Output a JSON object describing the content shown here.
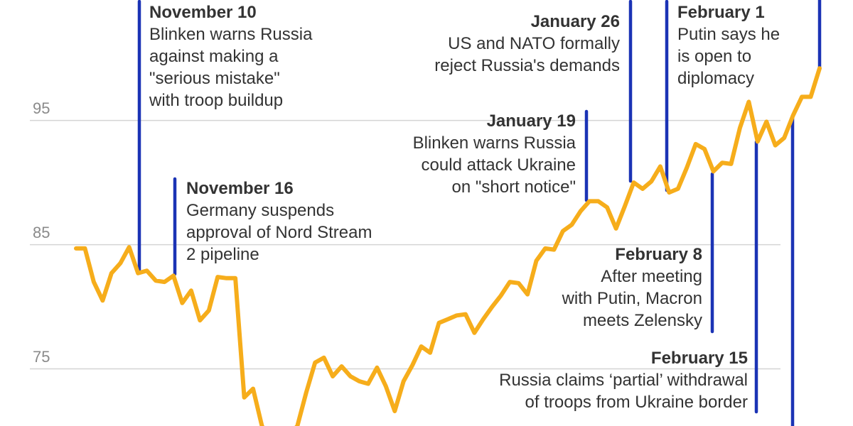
{
  "chart_data": {
    "type": "line",
    "title": "",
    "xlabel": "",
    "ylabel": "",
    "ylim": [
      70.4,
      104.7
    ],
    "grid": true,
    "yticks": [
      "95",
      "85",
      "75"
    ],
    "ytick_values": [
      95,
      85,
      75
    ],
    "line_color": "#f6ad1b",
    "annotation_color": "#1b33b5",
    "grid_color": "#d4d4d4",
    "values": [
      84.7,
      84.7,
      82.0,
      80.5,
      82.7,
      83.5,
      84.8,
      82.7,
      82.9,
      82.1,
      82.0,
      82.5,
      80.3,
      81.3,
      78.9,
      79.7,
      82.4,
      82.3,
      82.3,
      72.7,
      73.4,
      70.4,
      69.3,
      69.0,
      69.6,
      70.4,
      73.1,
      75.5,
      75.9,
      74.4,
      75.2,
      74.4,
      74.0,
      73.8,
      75.1,
      73.6,
      71.6,
      74.0,
      75.3,
      76.8,
      76.3,
      78.7,
      79.0,
      79.3,
      79.4,
      77.9,
      79.0,
      80.0,
      80.9,
      82.0,
      81.9,
      81.0,
      83.7,
      84.7,
      84.6,
      86.1,
      86.6,
      87.7,
      88.5,
      88.5,
      88.0,
      86.3,
      88.1,
      90.0,
      89.5,
      90.1,
      91.3,
      89.2,
      89.5,
      91.2,
      93.1,
      92.7,
      90.9,
      91.6,
      91.5,
      94.4,
      96.5,
      93.3,
      94.9,
      93.0,
      93.6,
      95.4,
      96.9,
      96.9,
      99.2
    ],
    "annotations": [
      {
        "date": "November 10",
        "lines": [
          "Blinken warns Russia",
          "against making a",
          "\"serious mistake\"",
          "with troop buildup"
        ]
      },
      {
        "date": "November 16",
        "lines": [
          "Germany suspends",
          "approval of Nord Stream",
          "2 pipeline"
        ]
      },
      {
        "date": "January 19",
        "lines": [
          "Blinken warns Russia",
          "could attack Ukraine",
          "on \"short notice\""
        ]
      },
      {
        "date": "January 26",
        "lines": [
          "US and NATO formally",
          "reject Russia's demands"
        ]
      },
      {
        "date": "February 1",
        "lines": [
          "Putin says he",
          "is open to",
          "diplomacy"
        ]
      },
      {
        "date": "February 8",
        "lines": [
          "After meeting",
          "with Putin, Macron",
          "meets Zelensky"
        ]
      },
      {
        "date": "February 15",
        "lines": [
          "Russia claims ‘partial’ withdrawal",
          "of troops from Ukraine border"
        ]
      }
    ]
  }
}
